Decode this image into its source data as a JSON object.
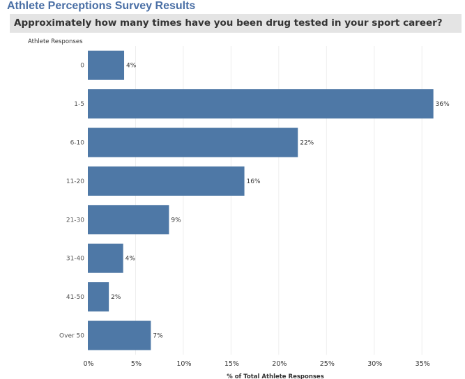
{
  "header": {
    "title": "Athlete Perceptions Survey Results",
    "question": "Approximately how many times have you been drug tested in your sport career?"
  },
  "colors": {
    "bar": "#4e78a6",
    "title": "#4a6fa5",
    "band": "#e4e4e4",
    "grid": "#eeeeee"
  },
  "chart_data": {
    "type": "bar",
    "orientation": "horizontal",
    "ylabel": "Athlete Responses",
    "xlabel": "% of Total Athlete Responses",
    "categories": [
      "0",
      "1-5",
      "6-10",
      "11-20",
      "21-30",
      "31-40",
      "41-50",
      "Over 50"
    ],
    "values": [
      3.8,
      36.2,
      22.0,
      16.4,
      8.5,
      3.7,
      2.2,
      6.6
    ],
    "data_labels": [
      "4%",
      "36%",
      "22%",
      "16%",
      "9%",
      "4%",
      "2%",
      "7%"
    ],
    "x_ticks": [
      0,
      5,
      10,
      15,
      20,
      25,
      30,
      35
    ],
    "x_tick_labels": [
      "0%",
      "5%",
      "10%",
      "15%",
      "20%",
      "25%",
      "30%",
      "35%"
    ],
    "xlim": [
      0,
      39
    ],
    "grid": true
  }
}
